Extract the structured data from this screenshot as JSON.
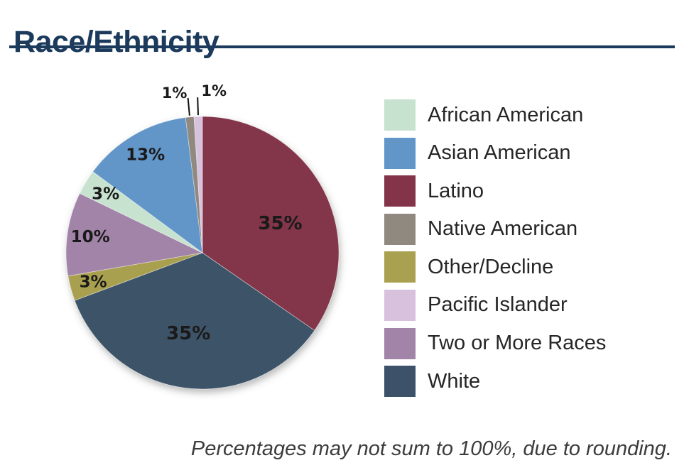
{
  "page": {
    "title": "Race/Ethnicity",
    "footnote": "Percentages may not sum to 100%, due to rounding."
  },
  "style": {
    "accent_navy": "#1B3A5C",
    "label_color": "#1a1a1a",
    "legend_text_color": "#262626"
  },
  "chart_data": {
    "type": "pie",
    "title": "Race/Ethnicity",
    "unit": "percent",
    "direction": "clockwise",
    "start_angle_deg": 0,
    "slices": [
      {
        "label": "Latino",
        "value": 35,
        "color": "#833448",
        "label_placement": "inside"
      },
      {
        "label": "White",
        "value": 35,
        "color": "#3D5268",
        "label_placement": "inside"
      },
      {
        "label": "Other/Decline",
        "value": 3,
        "color": "#A9A050",
        "label_placement": "inside"
      },
      {
        "label": "Two or More Races",
        "value": 10,
        "color": "#A184A8",
        "label_placement": "inside"
      },
      {
        "label": "African American",
        "value": 3,
        "color": "#C7E3CF",
        "label_placement": "inside"
      },
      {
        "label": "Asian American",
        "value": 13,
        "color": "#6295C8",
        "label_placement": "inside"
      },
      {
        "label": "Native American",
        "value": 1,
        "color": "#908980",
        "label_placement": "outside"
      },
      {
        "label": "Pacific Islander",
        "value": 1,
        "color": "#D8C1DC",
        "label_placement": "outside"
      }
    ],
    "legend_position": "right",
    "legend_order": [
      "African American",
      "Asian American",
      "Latino",
      "Native American",
      "Other/Decline",
      "Pacific Islander",
      "Two or More Races",
      "White"
    ],
    "note": "Percentages may not sum to 100%, due to rounding."
  }
}
